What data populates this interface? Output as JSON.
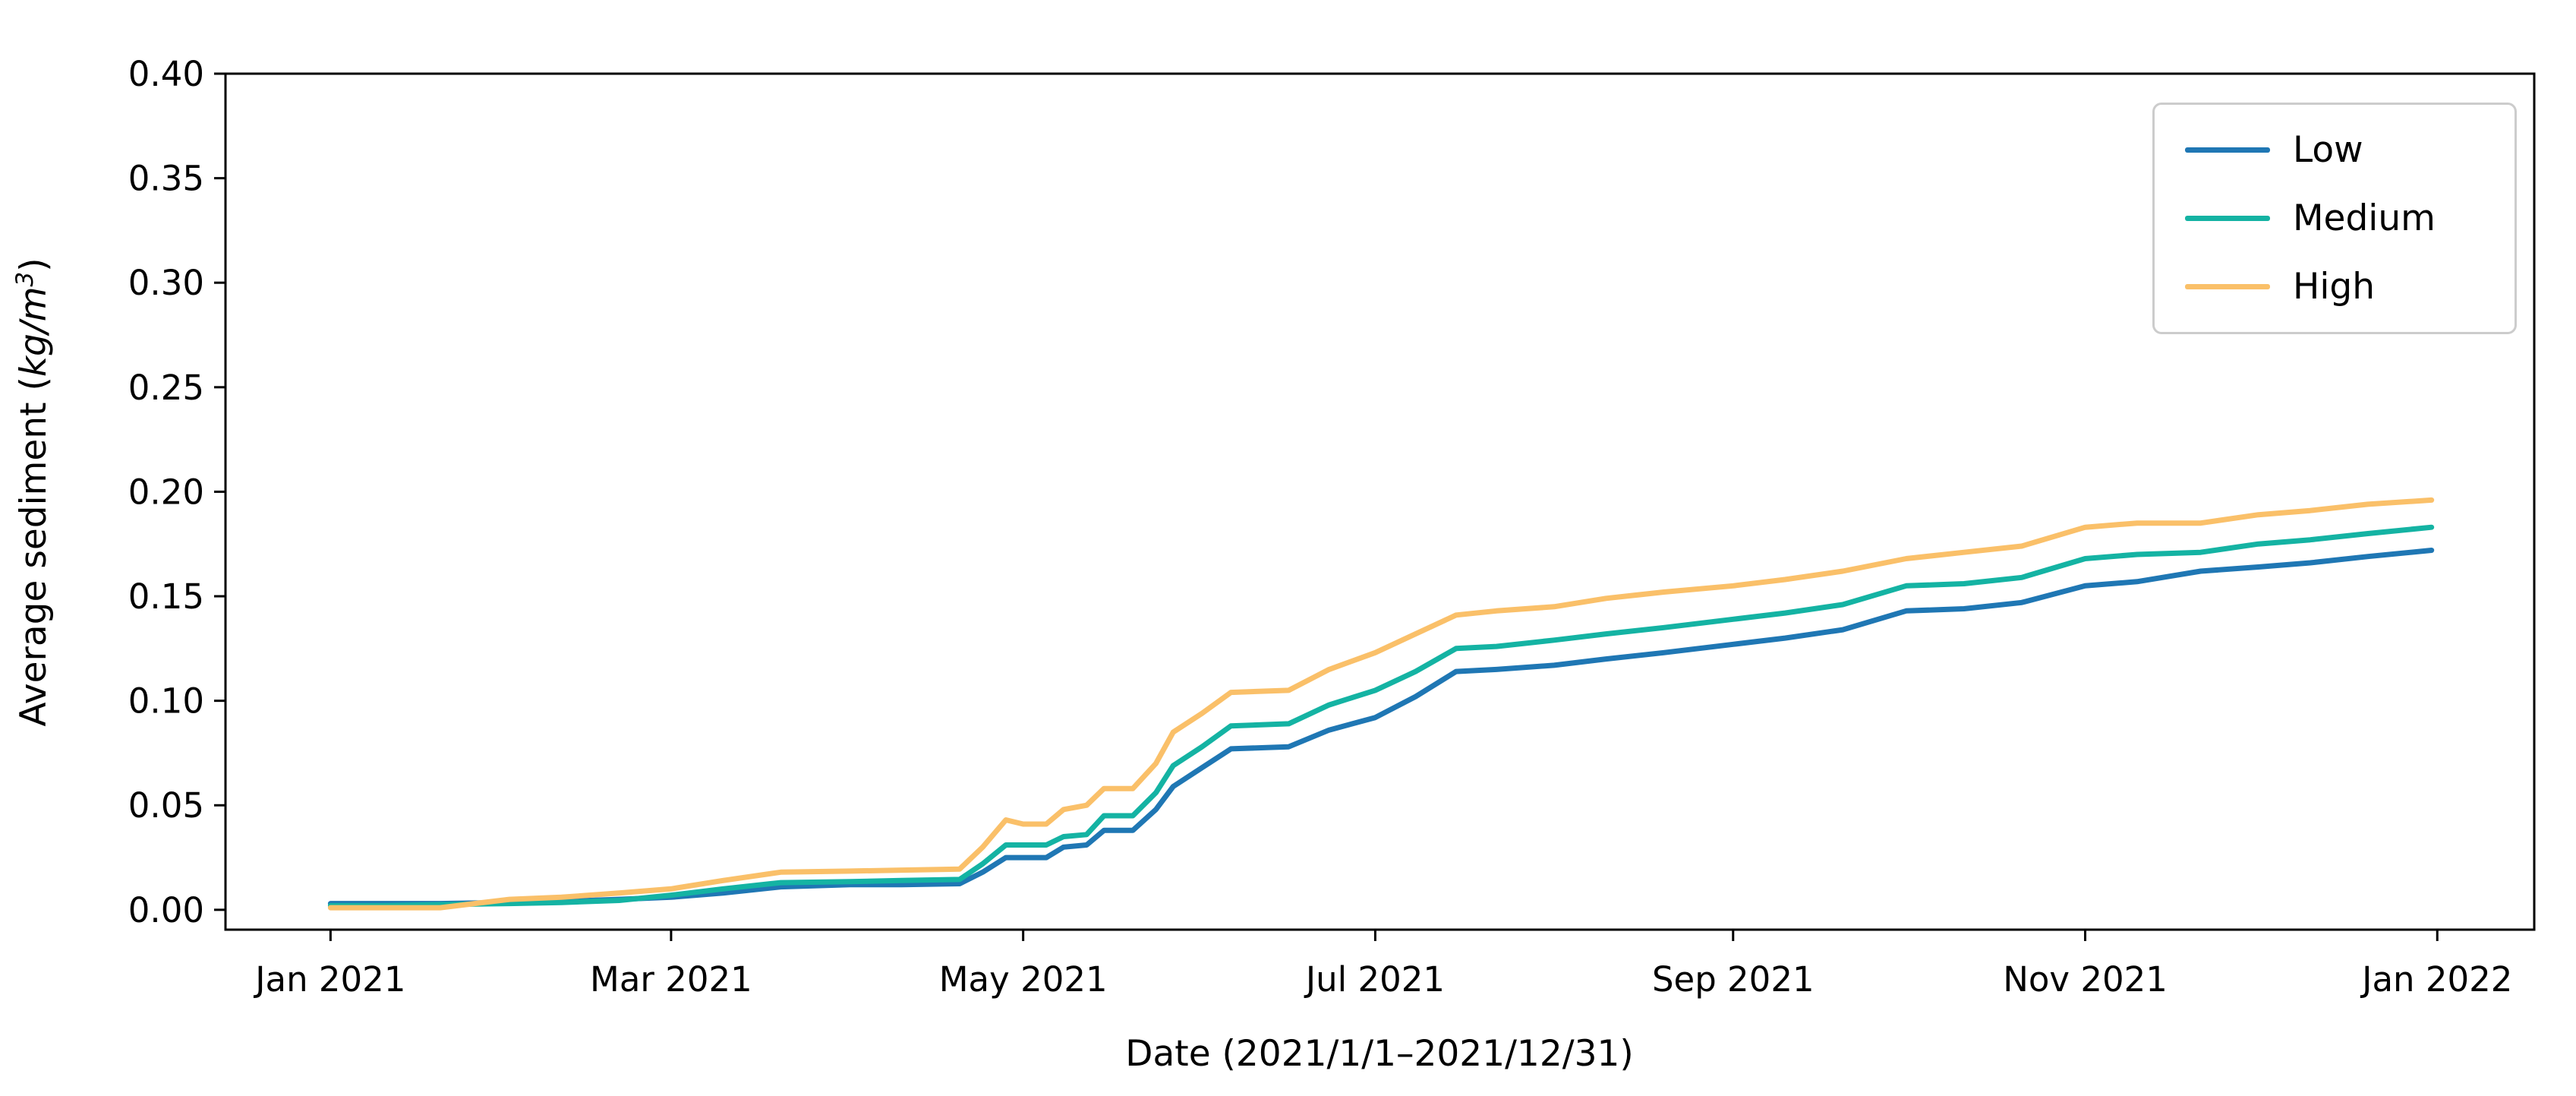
{
  "chart_data": {
    "type": "line",
    "title": "",
    "xlabel": "Date (2021/1/1–2021/12/31)",
    "ylabel_plain": "Average sediment (kg/m³)",
    "ylabel_parts": {
      "prefix": "Average sediment (",
      "unit_italic": "kg/m",
      "superscript": "3",
      "suffix": ")"
    },
    "background_color": "#ffffff",
    "axis_color": "#000000",
    "legend_border_color": "#cccccc",
    "grid": "off",
    "legend_position": "upper right",
    "ylim": [
      -0.0095,
      0.4
    ],
    "xlim_days": [
      -18.2,
      381.8
    ],
    "yticks": [
      {
        "value": 0.0,
        "label": "0.00"
      },
      {
        "value": 0.05,
        "label": "0.05"
      },
      {
        "value": 0.1,
        "label": "0.10"
      },
      {
        "value": 0.15,
        "label": "0.15"
      },
      {
        "value": 0.2,
        "label": "0.20"
      },
      {
        "value": 0.25,
        "label": "0.25"
      },
      {
        "value": 0.3,
        "label": "0.30"
      },
      {
        "value": 0.35,
        "label": "0.35"
      },
      {
        "value": 0.4,
        "label": "0.40"
      }
    ],
    "xticks": [
      {
        "day": 0,
        "label": "Jan 2021"
      },
      {
        "day": 59,
        "label": "Mar 2021"
      },
      {
        "day": 120,
        "label": "May 2021"
      },
      {
        "day": 181,
        "label": "Jul 2021"
      },
      {
        "day": 243,
        "label": "Sep 2021"
      },
      {
        "day": 304,
        "label": "Nov 2021"
      },
      {
        "day": 365,
        "label": "Jan 2022"
      }
    ],
    "x_dates": [
      "2021-01-01",
      "2021-01-10",
      "2021-01-20",
      "2021-02-01",
      "2021-02-10",
      "2021-02-20",
      "2021-03-01",
      "2021-03-10",
      "2021-03-20",
      "2021-04-01",
      "2021-04-10",
      "2021-04-20",
      "2021-04-24",
      "2021-04-28",
      "2021-05-01",
      "2021-05-05",
      "2021-05-08",
      "2021-05-12",
      "2021-05-15",
      "2021-05-20",
      "2021-05-24",
      "2021-05-27",
      "2021-06-01",
      "2021-06-06",
      "2021-06-16",
      "2021-06-23",
      "2021-07-01",
      "2021-07-08",
      "2021-07-15",
      "2021-07-22",
      "2021-08-01",
      "2021-08-10",
      "2021-08-20",
      "2021-09-01",
      "2021-09-10",
      "2021-09-20",
      "2021-10-01",
      "2021-10-11",
      "2021-10-21",
      "2021-11-01",
      "2021-11-10",
      "2021-11-21",
      "2021-12-01",
      "2021-12-10",
      "2021-12-20",
      "2021-12-31"
    ],
    "series": [
      {
        "name": "Low",
        "color": "#1f77b4",
        "values": [
          0.003,
          0.003,
          0.003,
          0.0035,
          0.004,
          0.005,
          0.006,
          0.008,
          0.011,
          0.012,
          0.012,
          0.0125,
          0.018,
          0.025,
          0.025,
          0.025,
          0.03,
          0.031,
          0.038,
          0.038,
          0.048,
          0.059,
          0.068,
          0.077,
          0.078,
          0.086,
          0.092,
          0.102,
          0.114,
          0.115,
          0.117,
          0.12,
          0.123,
          0.127,
          0.13,
          0.134,
          0.143,
          0.144,
          0.147,
          0.155,
          0.157,
          0.162,
          0.164,
          0.166,
          0.169,
          0.172
        ]
      },
      {
        "name": "Medium",
        "color": "#14b3a3",
        "values": [
          0.002,
          0.002,
          0.0025,
          0.003,
          0.0035,
          0.0045,
          0.007,
          0.01,
          0.013,
          0.0135,
          0.014,
          0.0145,
          0.022,
          0.031,
          0.031,
          0.031,
          0.035,
          0.036,
          0.045,
          0.045,
          0.056,
          0.069,
          0.078,
          0.088,
          0.089,
          0.098,
          0.105,
          0.114,
          0.125,
          0.126,
          0.129,
          0.132,
          0.135,
          0.139,
          0.142,
          0.146,
          0.155,
          0.156,
          0.159,
          0.168,
          0.17,
          0.171,
          0.175,
          0.177,
          0.18,
          0.183
        ]
      },
      {
        "name": "High",
        "color": "#fac069",
        "values": [
          0.001,
          0.001,
          0.001,
          0.005,
          0.006,
          0.008,
          0.01,
          0.014,
          0.018,
          0.0185,
          0.019,
          0.0195,
          0.03,
          0.043,
          0.041,
          0.041,
          0.048,
          0.05,
          0.058,
          0.058,
          0.07,
          0.085,
          0.094,
          0.104,
          0.105,
          0.115,
          0.123,
          0.132,
          0.141,
          0.143,
          0.145,
          0.149,
          0.152,
          0.155,
          0.158,
          0.162,
          0.168,
          0.171,
          0.174,
          0.183,
          0.185,
          0.185,
          0.189,
          0.191,
          0.194,
          0.196
        ]
      }
    ]
  },
  "legend": {
    "items": [
      {
        "label": "Low"
      },
      {
        "label": "Medium"
      },
      {
        "label": "High"
      }
    ]
  }
}
